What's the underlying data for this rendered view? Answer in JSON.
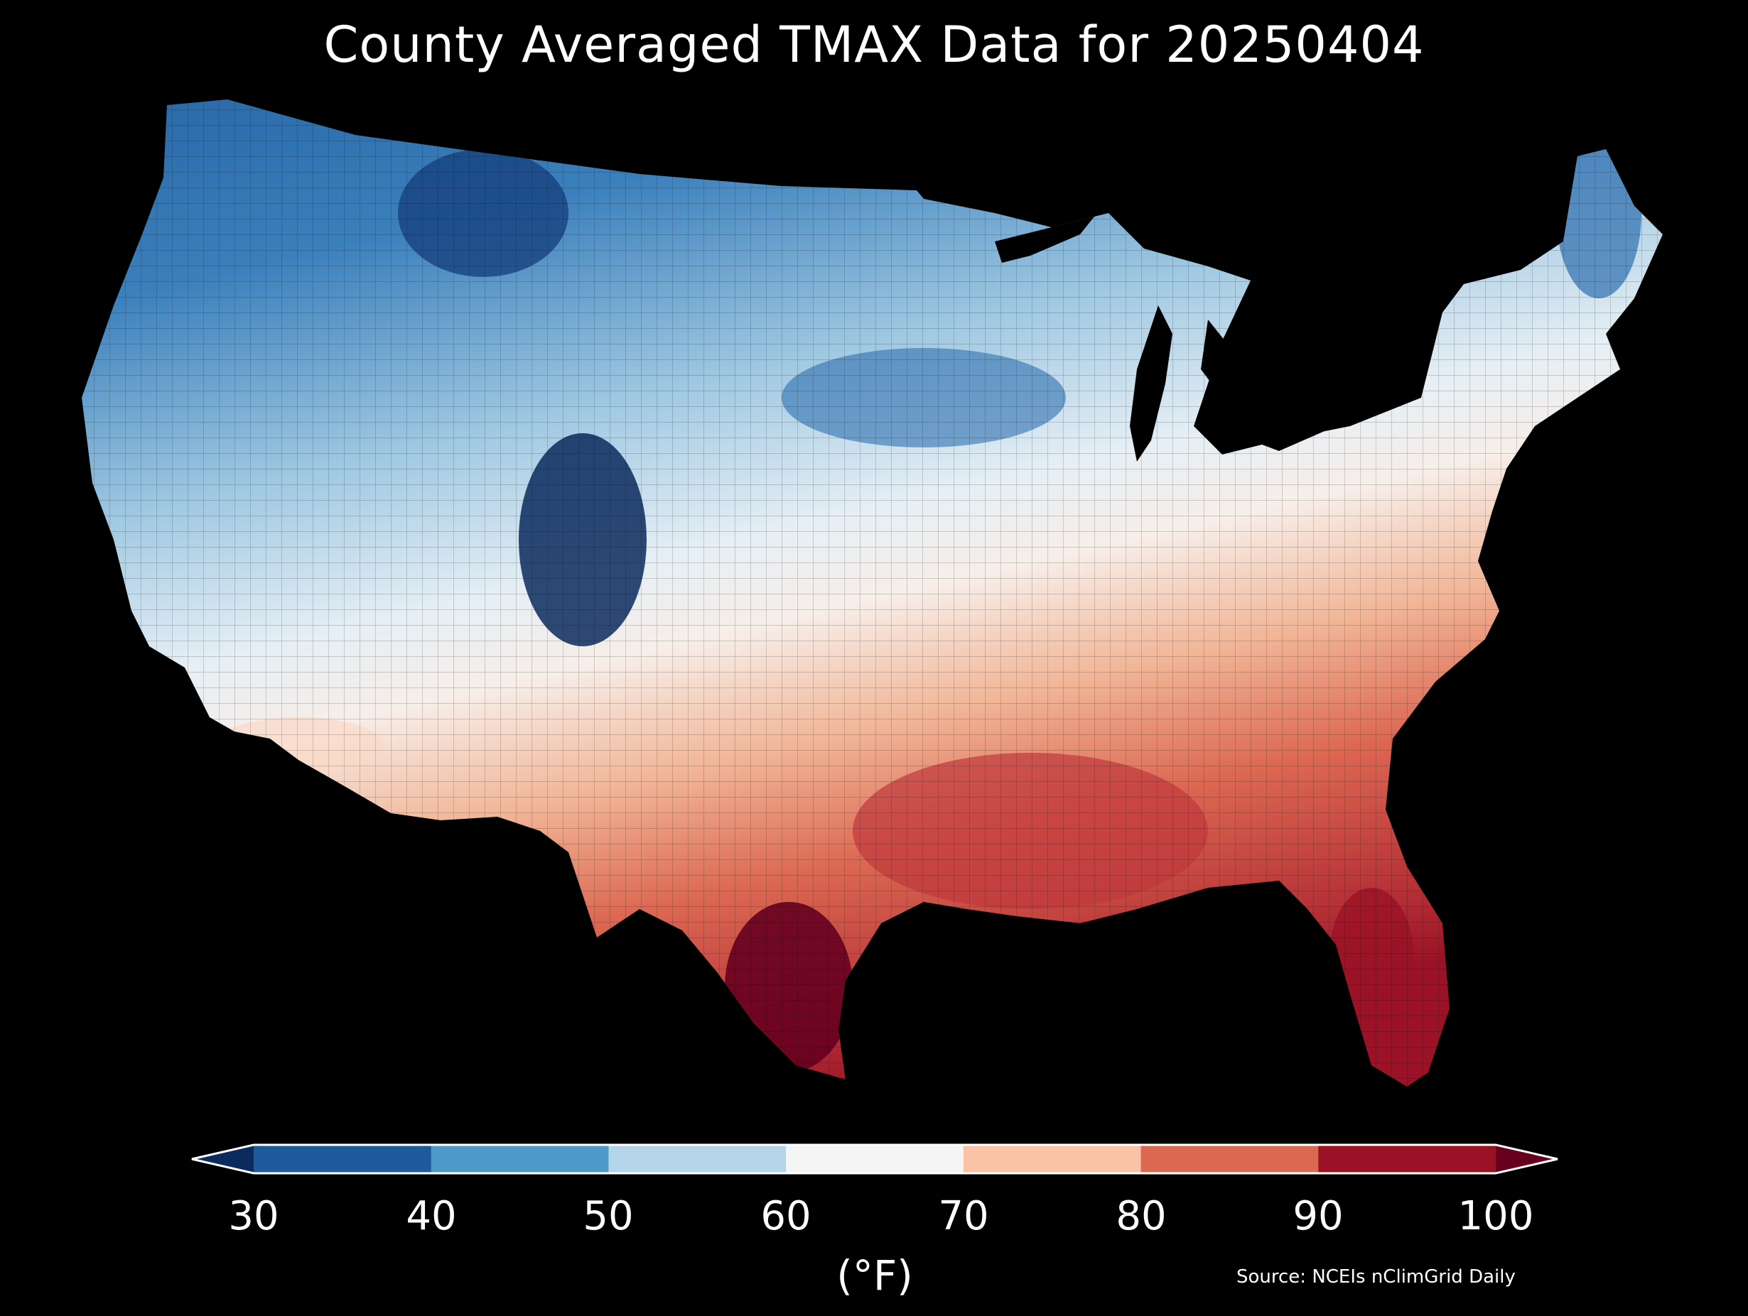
{
  "title": "County Averaged TMAX Data for 20250404",
  "colorbar": {
    "ticks": [
      "30",
      "40",
      "50",
      "60",
      "70",
      "80",
      "90",
      "100"
    ],
    "label": "(°F)",
    "bins": [
      {
        "range": "<30",
        "color": "#0b2a5e"
      },
      {
        "range": "30-40",
        "color": "#1e5a9c"
      },
      {
        "range": "40-50",
        "color": "#4d9ac9"
      },
      {
        "range": "50-60",
        "color": "#b5d6ea"
      },
      {
        "range": "60-70",
        "color": "#f5f5f5"
      },
      {
        "range": "70-80",
        "color": "#fac3a6"
      },
      {
        "range": "80-90",
        "color": "#dc6852"
      },
      {
        "range": "90-100",
        "color": "#9b1226"
      },
      {
        "range": ">100",
        "color": "#67001f"
      }
    ]
  },
  "source": "Source: NCEIs nClimGrid Daily"
}
